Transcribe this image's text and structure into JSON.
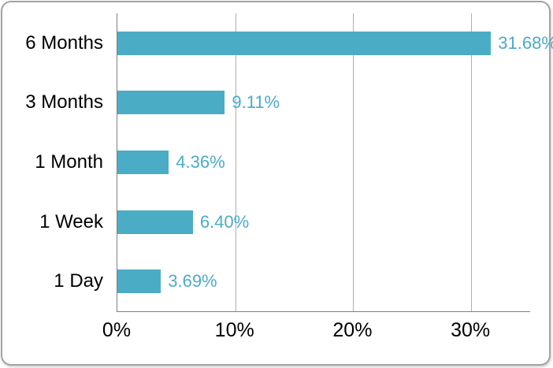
{
  "chart_data": {
    "type": "bar",
    "orientation": "horizontal",
    "title": "",
    "xlabel": "",
    "ylabel": "",
    "categories": [
      "6 Months",
      "3 Months",
      "1 Month",
      "1 Week",
      "1 Day"
    ],
    "values": [
      31.68,
      9.11,
      4.36,
      6.4,
      3.69
    ],
    "data_labels": [
      "31.68%",
      "9.11%",
      "4.36%",
      "6.40%",
      "3.69%"
    ],
    "x_ticks": [
      {
        "value": 0,
        "label": "0%"
      },
      {
        "value": 10,
        "label": "10%"
      },
      {
        "value": 20,
        "label": "20%"
      },
      {
        "value": 30,
        "label": "30%"
      }
    ],
    "xlim": [
      0,
      35
    ],
    "grid": "vertical-gridlines-on",
    "legend": "none",
    "colors": {
      "bar_fill": "#4BACC6",
      "data_label_text": "#4BACC6",
      "category_label_text": "#000000",
      "tick_label_text": "#000000",
      "gridline": "#AFAFAF",
      "axis_line": "#808080",
      "card_border": "#A3A3A3",
      "background": "#FFFFFF"
    }
  }
}
